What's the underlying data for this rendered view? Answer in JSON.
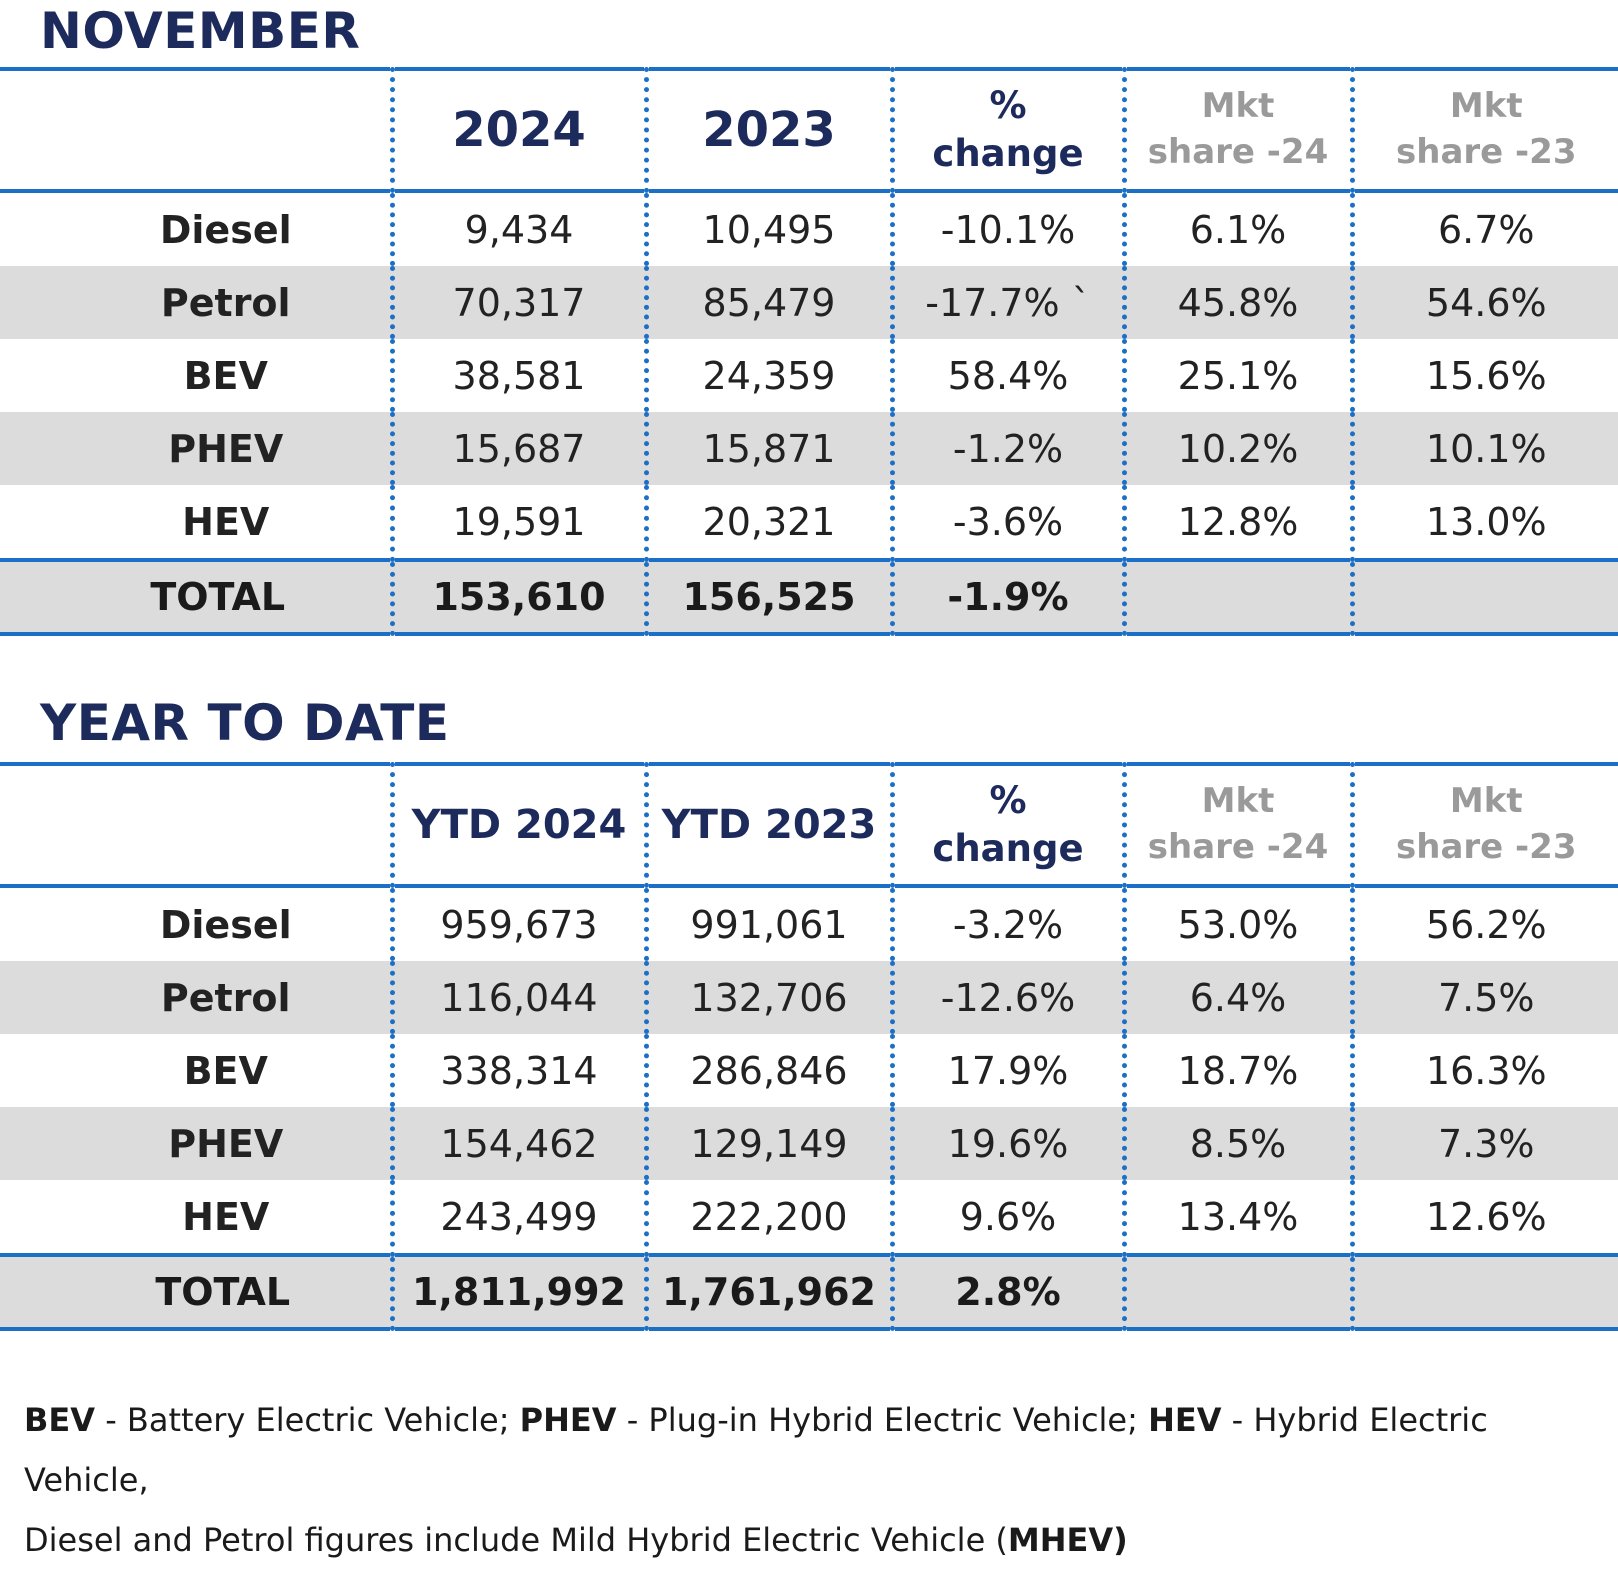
{
  "sections": {
    "november": {
      "title": "NOVEMBER",
      "headers": {
        "c1": "2024",
        "c2": "2023",
        "chg1": "%",
        "chg2": "change",
        "m1a": "Mkt",
        "m1b": "share -24",
        "m2a": "Mkt",
        "m2b": "share -23"
      },
      "rows": [
        {
          "label": "Diesel",
          "v1": "9,434",
          "v2": "10,495",
          "chg": "-10.1%",
          "m1": "6.1%",
          "m2": "6.7%"
        },
        {
          "label": "Petrol",
          "v1": "70,317",
          "v2": "85,479",
          "chg": "-17.7% `",
          "m1": "45.8%",
          "m2": "54.6%"
        },
        {
          "label": "BEV",
          "v1": "38,581",
          "v2": "24,359",
          "chg": "58.4%",
          "m1": "25.1%",
          "m2": "15.6%"
        },
        {
          "label": "PHEV",
          "v1": "15,687",
          "v2": "15,871",
          "chg": "-1.2%",
          "m1": "10.2%",
          "m2": "10.1%"
        },
        {
          "label": "HEV",
          "v1": "19,591",
          "v2": "20,321",
          "chg": "-3.6%",
          "m1": "12.8%",
          "m2": "13.0%"
        }
      ],
      "total": {
        "label": "TOTAL",
        "v1": "153,610",
        "v2": "156,525",
        "chg": "-1.9%"
      }
    },
    "ytd": {
      "title": "YEAR TO DATE",
      "headers": {
        "c1": "YTD 2024",
        "c2": "YTD 2023",
        "chg1": "%",
        "chg2": "change",
        "m1a": "Mkt",
        "m1b": "share -24",
        "m2a": "Mkt",
        "m2b": "share -23"
      },
      "rows": [
        {
          "label": "Diesel",
          "v1": "959,673",
          "v2": "991,061",
          "chg": "-3.2%",
          "m1": "53.0%",
          "m2": "56.2%"
        },
        {
          "label": "Petrol",
          "v1": "116,044",
          "v2": "132,706",
          "chg": "-12.6%",
          "m1": "6.4%",
          "m2": "7.5%"
        },
        {
          "label": "BEV",
          "v1": "338,314",
          "v2": "286,846",
          "chg": "17.9%",
          "m1": "18.7%",
          "m2": "16.3%"
        },
        {
          "label": "PHEV",
          "v1": "154,462",
          "v2": "129,149",
          "chg": "19.6%",
          "m1": "8.5%",
          "m2": "7.3%"
        },
        {
          "label": "HEV",
          "v1": "243,499",
          "v2": "222,200",
          "chg": "9.6%",
          "m1": "13.4%",
          "m2": "12.6%"
        }
      ],
      "total": {
        "label": "TOTAL",
        "v1": "1,811,992",
        "v2": "1,761,962",
        "chg": "2.8%"
      }
    }
  },
  "footnote": {
    "bev_abbr": "BEV",
    "bev_text": " - Battery Electric Vehicle; ",
    "phev_abbr": "PHEV",
    "phev_text": " - Plug-in Hybrid Electric Vehicle; ",
    "hev_abbr": "HEV",
    "hev_text": " - Hybrid Electric Vehicle,",
    "line2_text": "Diesel and Petrol figures include Mild Hybrid Electric Vehicle (",
    "mhev_abbr": "MHEV)"
  }
}
